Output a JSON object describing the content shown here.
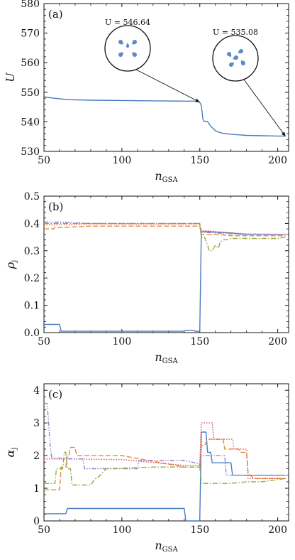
{
  "chart_data": [
    {
      "type": "line",
      "panel_label": "(a)",
      "xlabel": "n",
      "xlabel_sub": "GSA",
      "ylabel": "U",
      "xlim": [
        50,
        207
      ],
      "ylim": [
        530,
        580
      ],
      "xticks": [
        50,
        100,
        150,
        200
      ],
      "yticks": [
        530,
        540,
        550,
        560,
        570,
        580
      ],
      "series": [
        {
          "color": "#4a7cc0",
          "dash": "solid",
          "x": [
            50,
            52,
            56,
            60,
            65,
            80,
            100,
            120,
            140,
            148,
            150,
            151,
            152,
            152.5,
            153,
            154,
            155,
            157,
            158,
            159,
            160,
            162,
            165,
            170,
            175,
            180,
            190,
            200,
            205
          ],
          "y": [
            548.5,
            548.3,
            548.0,
            547.8,
            547.5,
            547.3,
            547.2,
            547.1,
            547.0,
            547.0,
            546.6,
            545.5,
            541.0,
            540.2,
            540.2,
            540.1,
            540.1,
            538.5,
            538.0,
            537.6,
            537.0,
            536.5,
            536.1,
            535.8,
            535.6,
            535.4,
            535.3,
            535.2,
            535.2
          ]
        }
      ],
      "annotations": [
        {
          "text": "U = 546.64",
          "x": 150,
          "y": 546.64
        },
        {
          "text": "U = 535.08",
          "x": 205,
          "y": 535.08
        }
      ]
    },
    {
      "type": "line",
      "panel_label": "(b)",
      "xlabel": "n",
      "xlabel_sub": "GSA",
      "ylabel": "ρ",
      "ylabel_sub": "j",
      "xlim": [
        50,
        207
      ],
      "ylim": [
        0,
        0.5
      ],
      "xticks": [
        50,
        100,
        150,
        200
      ],
      "yticks": [
        0.0,
        0.1,
        0.2,
        0.3,
        0.4,
        0.5
      ],
      "series": [
        {
          "color": "#4a7cc0",
          "dash": "solid",
          "x": [
            50,
            60,
            61,
            100,
            120,
            140,
            141,
            146,
            147,
            150,
            151,
            155,
            170,
            180,
            205
          ],
          "y": [
            0.03,
            0.03,
            0.005,
            0.005,
            0.005,
            0.005,
            0.008,
            0.008,
            0.005,
            0.005,
            0.37,
            0.37,
            0.365,
            0.36,
            0.36
          ]
        },
        {
          "color": "#e8883a",
          "dash": "dashed",
          "x": [
            50,
            56,
            57,
            60,
            80,
            100,
            120,
            140,
            150,
            151,
            160,
            170,
            180,
            205
          ],
          "y": [
            0.38,
            0.38,
            0.385,
            0.385,
            0.39,
            0.39,
            0.39,
            0.39,
            0.39,
            0.36,
            0.36,
            0.355,
            0.355,
            0.355
          ]
        },
        {
          "color": "#e0524a",
          "dash": "dotted",
          "x": [
            50,
            60,
            80,
            100,
            120,
            140,
            150,
            151,
            160,
            170,
            180,
            205
          ],
          "y": [
            0.395,
            0.395,
            0.398,
            0.398,
            0.398,
            0.398,
            0.398,
            0.375,
            0.37,
            0.365,
            0.362,
            0.36
          ]
        },
        {
          "color": "#9b7fd4",
          "dash": "dashdotdot",
          "x": [
            50,
            56,
            57,
            60,
            70,
            80,
            100,
            140,
            150,
            151,
            160,
            170,
            180,
            205
          ],
          "y": [
            0.405,
            0.405,
            0.405,
            0.405,
            0.402,
            0.4,
            0.4,
            0.4,
            0.4,
            0.368,
            0.365,
            0.362,
            0.36,
            0.36
          ]
        },
        {
          "color": "#8fae3a",
          "dash": "dashdot",
          "x": [
            50,
            100,
            150,
            151,
            153,
            155,
            156,
            158,
            160,
            162,
            163,
            165,
            167,
            170,
            180,
            200,
            205
          ],
          "y": [
            0.4,
            0.4,
            0.4,
            0.35,
            0.35,
            0.32,
            0.3,
            0.3,
            0.32,
            0.31,
            0.33,
            0.34,
            0.34,
            0.345,
            0.345,
            0.345,
            0.35
          ]
        }
      ]
    },
    {
      "type": "line",
      "panel_label": "(c)",
      "xlabel": "n",
      "xlabel_sub": "GSA",
      "ylabel": "α",
      "ylabel_sub": "j",
      "xlim": [
        50,
        207
      ],
      "ylim": [
        0,
        4.2
      ],
      "xticks": [
        50,
        100,
        150,
        200
      ],
      "yticks": [
        0,
        1,
        2,
        3,
        4
      ],
      "series": [
        {
          "color": "#4a7cc0",
          "dash": "solid",
          "x": [
            50,
            54,
            64,
            65,
            140,
            141,
            150,
            151,
            154,
            155,
            157,
            158,
            160,
            165,
            170,
            171,
            173,
            180,
            205
          ],
          "y": [
            0.22,
            0.22,
            0.22,
            0.38,
            0.38,
            0.0,
            0.0,
            2.72,
            2.72,
            2.1,
            2.1,
            1.78,
            1.78,
            1.78,
            1.78,
            1.4,
            1.4,
            1.4,
            1.4
          ]
        },
        {
          "color": "#e8883a",
          "dash": "dashed",
          "x": [
            50,
            60,
            61,
            64,
            65,
            66,
            67,
            70,
            71,
            100,
            140,
            150,
            151,
            153,
            155,
            156,
            165,
            166,
            175,
            176,
            180,
            181,
            185,
            205
          ],
          "y": [
            0.95,
            0.95,
            1.65,
            1.65,
            2.0,
            2.0,
            2.25,
            2.25,
            2.0,
            2.0,
            1.65,
            1.65,
            2.3,
            2.3,
            2.5,
            2.5,
            2.5,
            2.2,
            2.2,
            2.1,
            2.1,
            1.45,
            1.3,
            1.3
          ]
        },
        {
          "color": "#e0524a",
          "dash": "dotted",
          "x": [
            50,
            100,
            140,
            150,
            151,
            158,
            159,
            171,
            172,
            180,
            181,
            205
          ],
          "y": [
            1.9,
            1.88,
            1.7,
            1.7,
            3.0,
            3.0,
            2.5,
            2.5,
            2.2,
            2.2,
            1.3,
            1.3
          ]
        },
        {
          "color": "#9b7fd4",
          "dash": "dashdotdot",
          "x": [
            50,
            52,
            53,
            54,
            55,
            60,
            70,
            75,
            76,
            100,
            110,
            111,
            140,
            150,
            151,
            160,
            166,
            167,
            168,
            170,
            180,
            205
          ],
          "y": [
            3.6,
            3.6,
            3.0,
            2.3,
            1.92,
            1.92,
            1.9,
            1.9,
            1.6,
            1.6,
            1.6,
            1.85,
            1.85,
            1.75,
            2.0,
            2.0,
            2.0,
            1.4,
            1.4,
            1.4,
            1.4,
            1.4
          ]
        },
        {
          "color": "#8fae3a",
          "dash": "dashdot",
          "x": [
            50,
            57,
            58,
            62,
            63,
            64,
            65,
            67,
            68,
            80,
            83,
            84,
            90,
            91,
            120,
            150,
            151,
            160,
            170,
            180,
            190,
            205
          ],
          "y": [
            1.15,
            1.15,
            1.6,
            1.6,
            2.1,
            2.1,
            1.6,
            1.6,
            1.1,
            1.1,
            1.3,
            1.3,
            1.6,
            1.6,
            1.65,
            1.65,
            1.15,
            1.15,
            1.15,
            1.2,
            1.2,
            1.3
          ]
        }
      ]
    }
  ]
}
